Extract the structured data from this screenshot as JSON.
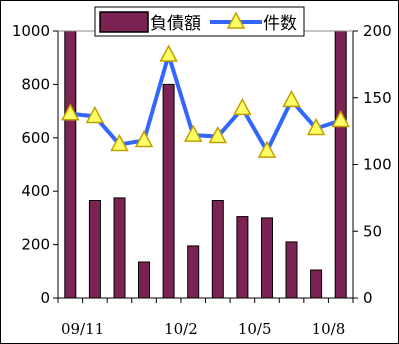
{
  "chart_data": {
    "type": "bar",
    "categories": [
      "09/11",
      "",
      "",
      "",
      "10/2",
      "",
      "",
      "10/5",
      "",
      "",
      "10/8",
      ""
    ],
    "x_tick_labels": [
      "09/11",
      "10/2",
      "10/5",
      "10/8"
    ],
    "series": [
      {
        "name": "負債額",
        "type": "bar",
        "axis": "left",
        "color": "#7b2352",
        "values": [
          1000,
          365,
          375,
          135,
          800,
          195,
          365,
          305,
          300,
          210,
          105,
          1000
        ]
      },
      {
        "name": "件数",
        "type": "line",
        "axis": "right",
        "color": "#3366ff",
        "marker_fill": "#ffff66",
        "marker_stroke": "#c0a000",
        "values": [
          138,
          136,
          115,
          118,
          182,
          122,
          121,
          142,
          110,
          148,
          127,
          133
        ]
      }
    ],
    "left_axis": {
      "ylim": [
        0,
        1000
      ],
      "ticks": [
        0,
        200,
        400,
        600,
        800,
        1000
      ]
    },
    "right_axis": {
      "ylim": [
        0,
        200
      ],
      "ticks": [
        0,
        50,
        100,
        150,
        200
      ]
    },
    "legend": {
      "placement": "top-center"
    },
    "grid": false
  }
}
